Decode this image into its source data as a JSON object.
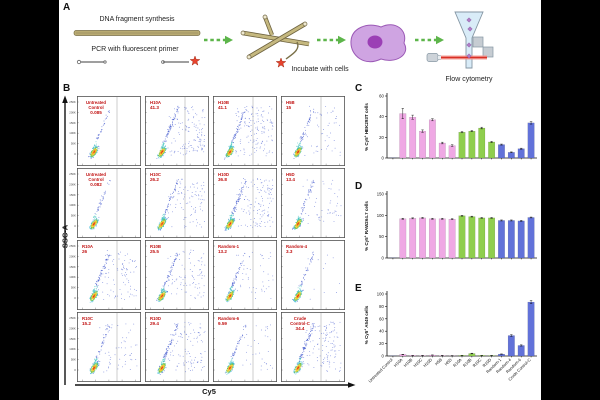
{
  "panel_a": {
    "label": "A",
    "step1_line1": "DNA fragment synthesis",
    "step1_line2": "PCR with fluorescent primer",
    "step2_caption": "Incubate with cells",
    "step4_caption": "Flow cytometry"
  },
  "panel_b": {
    "label": "B",
    "y_axis_label": "SSC-A",
    "x_axis_label": "Cy5",
    "y_tick_labels": [
      "250K",
      "200K",
      "150K",
      "100K",
      "50K",
      "0"
    ],
    "plots": [
      {
        "name": "Untreated Control",
        "value": "0.085",
        "pct": 0.085
      },
      {
        "name": "H10A",
        "value": "41.3",
        "pct": 41.3
      },
      {
        "name": "H10B",
        "value": "41.1",
        "pct": 41.1
      },
      {
        "name": "H5B",
        "value": "15",
        "pct": 15
      },
      {
        "name": "Untreated Control",
        "value": "0.082",
        "pct": 0.082
      },
      {
        "name": "H10C",
        "value": "26.2",
        "pct": 26.2
      },
      {
        "name": "H10D",
        "value": "36.8",
        "pct": 36.8
      },
      {
        "name": "H5D",
        "value": "13.4",
        "pct": 13.4
      },
      {
        "name": "R10A",
        "value": "26",
        "pct": 26
      },
      {
        "name": "R10B",
        "value": "25.5",
        "pct": 25.5
      },
      {
        "name": "Random-1",
        "value": "13.2",
        "pct": 13.2
      },
      {
        "name": "Random-4",
        "value": "3.3",
        "pct": 3.3
      },
      {
        "name": "R10C",
        "value": "15.2",
        "pct": 15.2
      },
      {
        "name": "R10D",
        "value": "29.4",
        "pct": 29.4
      },
      {
        "name": "Random-6",
        "value": "9.59",
        "pct": 9.59
      },
      {
        "name": "Crude Control-C",
        "value": "34.4",
        "pct": 34.4
      }
    ]
  },
  "categories": [
    "Untreated Control",
    "H10A",
    "H10B",
    "H10C",
    "H10D",
    "H5B",
    "H5D",
    "R10A",
    "R10B",
    "R10C",
    "R10D",
    "Random-1",
    "Random-4",
    "Random-6",
    "Crude Control-C"
  ],
  "bar_groups": [
    "blue",
    "pink",
    "pink",
    "pink",
    "pink",
    "pink",
    "pink",
    "green",
    "green",
    "green",
    "green",
    "blue",
    "blue",
    "blue",
    "blue"
  ],
  "chart_data": [
    {
      "panel_label": "C",
      "type": "bar",
      "ylabel": "% Cy5+ HEK293T cells",
      "ylim": [
        0,
        60
      ],
      "yticks": [
        0,
        20,
        40,
        60
      ],
      "show_x_labels": false,
      "categories": [
        "Untreated Control",
        "H10A",
        "H10B",
        "H10C",
        "H10D",
        "H5B",
        "H5D",
        "R10A",
        "R10B",
        "R10C",
        "R10D",
        "Random-1",
        "Random-4",
        "Random-6",
        "Crude Control-C"
      ],
      "values": [
        0.1,
        43,
        39.5,
        26,
        37,
        14.5,
        12,
        25,
        26,
        29,
        15.5,
        13,
        5.5,
        9,
        34
      ],
      "errors": [
        0,
        5,
        2,
        1.2,
        1,
        0.8,
        0.8,
        0.6,
        0.6,
        0.8,
        0.6,
        0.5,
        0.4,
        0.5,
        1.2
      ]
    },
    {
      "panel_label": "D",
      "type": "bar",
      "ylabel": "% Cy5+ RAW264.7 cells",
      "ylim": [
        0,
        150
      ],
      "yticks": [
        0,
        50,
        100,
        150
      ],
      "show_x_labels": false,
      "categories": [
        "Untreated Control",
        "H10A",
        "H10B",
        "H10C",
        "H10D",
        "H5B",
        "H5D",
        "R10A",
        "R10B",
        "R10C",
        "R10D",
        "Random-1",
        "Random-4",
        "Random-6",
        "Crude Control-C"
      ],
      "values": [
        0.1,
        92,
        93,
        94,
        92,
        92,
        91,
        99,
        97,
        94,
        94,
        88,
        88,
        87,
        95
      ],
      "errors": [
        0,
        1.2,
        1.2,
        1.2,
        1.2,
        1.2,
        1.2,
        1,
        1,
        1,
        1,
        1.2,
        1.2,
        1.2,
        1
      ]
    },
    {
      "panel_label": "E",
      "type": "bar",
      "ylabel": "% Cy5+ A549 cells",
      "ylim": [
        0,
        100
      ],
      "yticks": [
        0,
        20,
        40,
        60,
        80,
        100
      ],
      "show_x_labels": true,
      "categories": [
        "Untreated Control",
        "H10A",
        "H10B",
        "H10C",
        "H10D",
        "H5B",
        "H5D",
        "R10A",
        "R10B",
        "R10C",
        "R10D",
        "Random-1",
        "Random-4",
        "Random-6",
        "Crude Control-C"
      ],
      "values": [
        0.2,
        2.5,
        1,
        0.8,
        1.5,
        0.8,
        0.5,
        1,
        4,
        1,
        0.8,
        3,
        33,
        17,
        87
      ],
      "errors": [
        0,
        0.3,
        0.2,
        0.2,
        0.3,
        0.2,
        0.2,
        0.2,
        0.5,
        0.2,
        0.2,
        0.4,
        1.5,
        1,
        2.5
      ]
    }
  ],
  "colors": {
    "bar_pink": "#efa8e4",
    "bar_green": "#8fce4e",
    "bar_blue": "#6272d9",
    "flow_label_red": "#c11212",
    "arrow_green": "#5db54a",
    "error_bar": "#111111"
  }
}
